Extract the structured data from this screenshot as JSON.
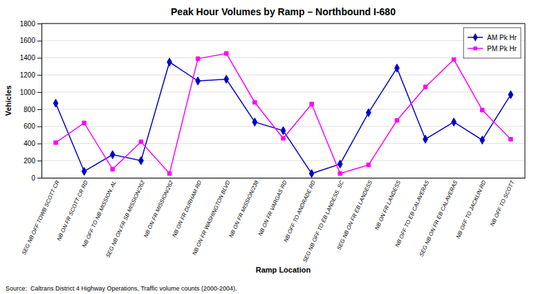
{
  "chart_data": {
    "type": "line",
    "title": "Peak Hour Volumes by Ramp – Northbound I-680",
    "x_label": "Ramp Location",
    "y_label": "Vehicles",
    "source": "Source:  Caltrans District 4 Highway Operations, Traffic volume counts (2000-2004).",
    "categories": [
      "SEG NB OFF TOWB SCOTT CR",
      "NB ON FR SCOTT CR RD",
      "NB OFF TO NB MISSION. AL",
      "SEG NB ON FR SB MISSION/262",
      "NB ON FR MISSION/262",
      "NB ON FR DURHAM RD",
      "NB ON FR WASHINGTON BLVD",
      "NB ON FR MISSION/238",
      "NB ON FR VARGAS RD",
      "NB OFF TO ANDRADE RD",
      "SEG NB OFF TO EB LANDESS. SC",
      "SEG NB ON FR EB LANDESS",
      "NB ON FR LANDESS",
      "NB OFF TO EB CALAVERAS",
      "SEG NB ON FR EB CALAVERAS",
      "NB OFF TO JACKLIN RD",
      "NB OFF TO SCOTT"
    ],
    "series": [
      {
        "name": "AM Pk Hr",
        "color": "#0000CC",
        "marker": "diamond",
        "values": [
          870,
          75,
          270,
          200,
          1350,
          1130,
          1150,
          650,
          550,
          50,
          160,
          760,
          1280,
          450,
          650,
          440,
          970
        ]
      },
      {
        "name": "PM Pk Hr",
        "color": "#FF00FF",
        "marker": "square",
        "values": [
          410,
          640,
          100,
          420,
          50,
          1390,
          1450,
          880,
          460,
          860,
          50,
          150,
          670,
          1060,
          1380,
          790,
          450
        ]
      }
    ],
    "ylim": [
      0,
      1800
    ],
    "yticks": [
      0,
      200,
      400,
      600,
      800,
      1000,
      1200,
      1400,
      1600,
      1800
    ],
    "grid": true,
    "legend": "upper right"
  }
}
